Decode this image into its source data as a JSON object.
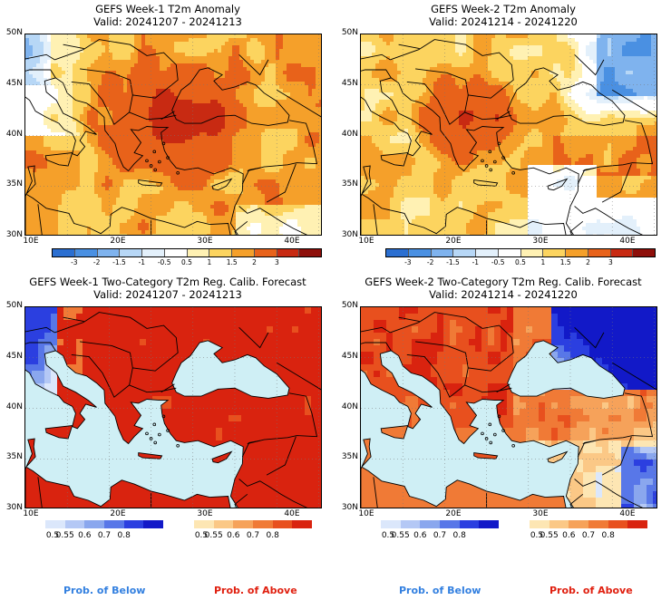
{
  "panels": [
    {
      "title": "GEFS Week-1 T2m Anomaly",
      "valid": "Valid: 20241207 - 20241213",
      "kind": "anomaly",
      "week": 1
    },
    {
      "title": "GEFS Week-2 T2m Anomaly",
      "valid": "Valid: 20241214 - 20241220",
      "kind": "anomaly",
      "week": 2
    },
    {
      "title": "GEFS Week-1 Two-Category T2m Reg. Calib. Forecast",
      "valid": "Valid: 20241207 - 20241213",
      "kind": "prob",
      "week": 1
    },
    {
      "title": "GEFS Week-2 Two-Category T2m Reg. Calib. Forecast",
      "valid": "Valid: 20241214 - 20241220",
      "kind": "prob",
      "week": 2
    }
  ],
  "axes": {
    "lat_labels": [
      "50N",
      "45N",
      "40N",
      "35N",
      "30N"
    ],
    "lon_labels": [
      "10E",
      "20E",
      "30E",
      "40E"
    ]
  },
  "anomaly_colorbar": {
    "ticks": [
      "-3",
      "-2",
      "-1.5",
      "-1",
      "-0.5",
      "0.5",
      "1",
      "1.5",
      "2",
      "3"
    ],
    "colors": [
      "#2b6fd1",
      "#4a90e2",
      "#7fb3ee",
      "#b7d7f6",
      "#e3f0fb",
      "#ffffff",
      "#fff1b3",
      "#fcd45f",
      "#f5a02a",
      "#e8621a",
      "#c82a12",
      "#8e0f0a"
    ]
  },
  "prob_colorbars": {
    "below": {
      "ticks": [
        "0.5",
        "0.55",
        "0.6",
        "0.7",
        "0.8"
      ],
      "colors": [
        "#dbe7fb",
        "#b4c8f5",
        "#8aa7ee",
        "#5877e8",
        "#2b3fe0",
        "#1219c8"
      ]
    },
    "above": {
      "ticks": [
        "0.5",
        "0.55",
        "0.6",
        "0.7",
        "0.8"
      ],
      "colors": [
        "#fde6b3",
        "#fbc886",
        "#f6a25a",
        "#f07a36",
        "#e8501e",
        "#d9230f"
      ]
    }
  },
  "legend_labels": {
    "below": "Prob. of Below",
    "above": "Prob. of Above"
  },
  "colors": {
    "below_label": "#3380e0",
    "above_label": "#e02010",
    "sea": "#cfeff5"
  }
}
